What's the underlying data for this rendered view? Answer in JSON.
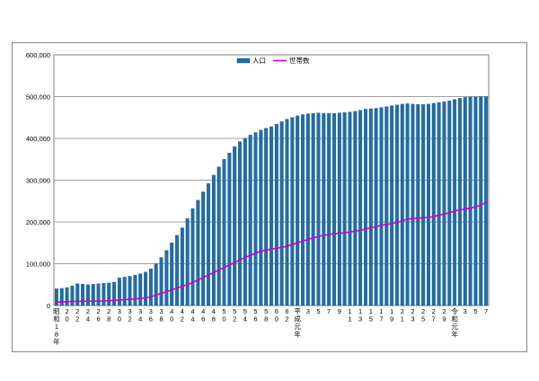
{
  "chart_data": {
    "type": "bar",
    "ylim": [
      0,
      600000
    ],
    "yticks": [
      "0",
      "100,000",
      "200,000",
      "300,000",
      "400,000",
      "500,000",
      "600,000"
    ],
    "grid": true,
    "legend_position": "top-center",
    "colors": {
      "bar": "#1f6fa8",
      "bar_edge": "#0d3f66",
      "line": "#cc00cc",
      "grid": "#7f7f7f"
    },
    "x_labels": [
      "昭和18年",
      "",
      "20",
      "",
      "22",
      "",
      "24",
      "",
      "26",
      "",
      "28",
      "",
      "30",
      "",
      "32",
      "",
      "34",
      "",
      "36",
      "",
      "38",
      "",
      "40",
      "",
      "42",
      "",
      "44",
      "",
      "46",
      "",
      "48",
      "",
      "50",
      "",
      "52",
      "",
      "54",
      "",
      "56",
      "",
      "58",
      "",
      "60",
      "",
      "62",
      "",
      "平成元年",
      "",
      "3",
      "",
      "5",
      "",
      "7",
      "",
      "9",
      "",
      "11",
      "",
      "13",
      "",
      "15",
      "",
      "17",
      "",
      "19",
      "",
      "21",
      "",
      "23",
      "",
      "25",
      "",
      "27",
      "",
      "29",
      "",
      "令和元年",
      "",
      "3",
      "",
      "5",
      "",
      "7"
    ],
    "series": [
      {
        "name": "人口",
        "type": "bar",
        "values": [
          40000,
          41000,
          43000,
          47000,
          52000,
          51000,
          50000,
          51000,
          52000,
          53000,
          54000,
          56000,
          66000,
          68000,
          70000,
          73000,
          76000,
          80000,
          88000,
          100000,
          115000,
          132000,
          150000,
          168000,
          186000,
          208000,
          232000,
          252000,
          272000,
          292000,
          312000,
          332000,
          350000,
          365000,
          380000,
          392000,
          400000,
          408000,
          414000,
          420000,
          424000,
          428000,
          434000,
          440000,
          446000,
          450000,
          454000,
          457000,
          459000,
          460000,
          461000,
          460000,
          460000,
          460000,
          461000,
          462000,
          463000,
          465000,
          467000,
          470000,
          471000,
          472000,
          474000,
          476000,
          478000,
          480000,
          482000,
          483000,
          482000,
          481000,
          481000,
          482000,
          484000,
          486000,
          488000,
          490000,
          493000,
          496000,
          498000,
          499000,
          499000,
          500000,
          500000
        ],
        "highlight": "y"
      },
      {
        "name": "世帯数",
        "type": "line",
        "values": [
          8000,
          8500,
          9000,
          9500,
          9800,
          10000,
          10200,
          10400,
          10600,
          11000,
          11500,
          12000,
          13000,
          14000,
          15000,
          16000,
          17000,
          18000,
          21000,
          25000,
          29000,
          33000,
          37000,
          42000,
          46000,
          50000,
          55000,
          61000,
          67000,
          73000,
          79000,
          85000,
          91000,
          97000,
          103000,
          109000,
          115000,
          120000,
          125000,
          130000,
          133000,
          135000,
          137000,
          139000,
          142000,
          146000,
          150000,
          154000,
          158000,
          162000,
          165000,
          168000,
          170000,
          172000,
          173000,
          174000,
          176000,
          178000,
          180000,
          183000,
          186000,
          189000,
          192000,
          194000,
          196000,
          199000,
          203000,
          207000,
          208000,
          209000,
          210000,
          211000,
          213000,
          216000,
          219000,
          222000,
          226000,
          229000,
          231000,
          233000,
          236000,
          240000,
          247000
        ]
      }
    ]
  }
}
